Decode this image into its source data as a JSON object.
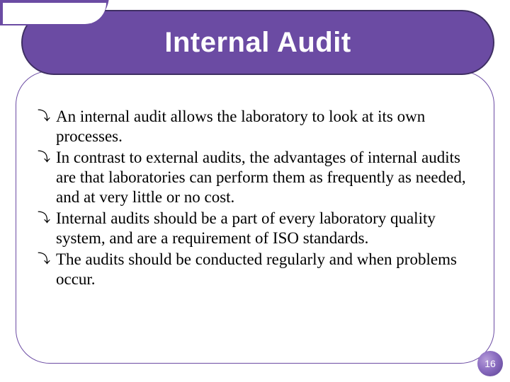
{
  "theme": {
    "primary_purple": "#6b4ba3",
    "dark_purple_border": "#3f2f63",
    "badge_gradient_light": "#b79eda",
    "badge_gradient_mid": "#8a6cc0",
    "badge_gradient_dark": "#5a4091",
    "background": "#ffffff",
    "text_color": "#000000",
    "title_color": "#ffffff"
  },
  "typography": {
    "title_fontsize": 40,
    "title_weight": "bold",
    "title_family": "Arial",
    "body_fontsize": 23,
    "body_family": "Times New Roman",
    "body_lineheight": 1.22,
    "badge_fontsize": 14
  },
  "layout": {
    "slide_width": 720,
    "slide_height": 540,
    "title_bar_radius": 48,
    "content_frame_radius": 48
  },
  "title": "Internal Audit",
  "bullet_marker": "⤵",
  "bullets": [
    "An internal audit allows the laboratory to look at its own processes.",
    "In contrast to external audits, the advantages of internal audits are that laboratories can perform them as frequently as needed, and at very little or no cost.",
    "Internal audits should be a part of every laboratory quality system, and are a requirement of ISO standards.",
    "The audits should be conducted regularly and when problems occur."
  ],
  "page_number": "16"
}
